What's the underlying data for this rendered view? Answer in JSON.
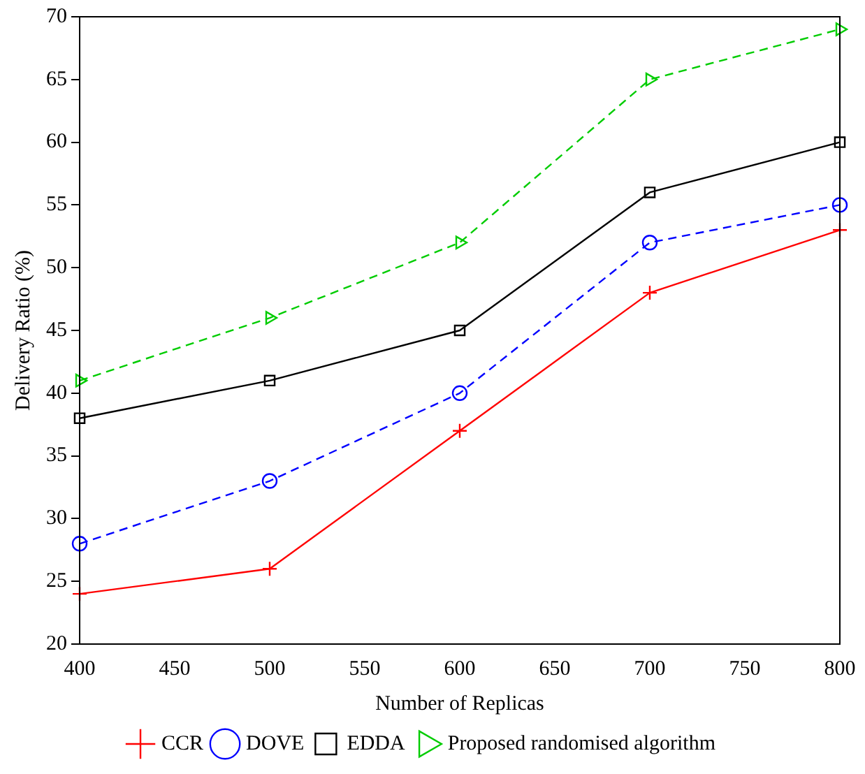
{
  "chart_data": {
    "type": "line",
    "xlabel": "Number of Replicas",
    "ylabel": "Delivery Ratio (%)",
    "x": [
      400,
      500,
      600,
      700,
      800
    ],
    "xlim": [
      400,
      800
    ],
    "xticks": [
      400,
      450,
      500,
      550,
      600,
      650,
      700,
      750,
      800
    ],
    "ylim": [
      20,
      70
    ],
    "yticks": [
      20,
      25,
      30,
      35,
      40,
      45,
      50,
      55,
      60,
      65,
      70
    ],
    "grid": false,
    "legend": "bottom",
    "series": [
      {
        "name": "CCR",
        "color": "#ff0000",
        "values": [
          24,
          26,
          37,
          48,
          53
        ],
        "marker": "cross",
        "line_style": "solid"
      },
      {
        "name": "DOVE",
        "color": "#0000ff",
        "values": [
          28,
          33,
          40,
          52,
          55
        ],
        "marker": "circle",
        "line_style": "dashed"
      },
      {
        "name": "EDDA",
        "color": "#000000",
        "values": [
          38,
          41,
          45,
          56,
          60
        ],
        "marker": "square",
        "line_style": "solid"
      },
      {
        "name": "Proposed randomised algorithm",
        "color": "#00cc00",
        "values": [
          41,
          46,
          52,
          65,
          69
        ],
        "marker": "triangle",
        "line_style": "dashed"
      }
    ]
  }
}
